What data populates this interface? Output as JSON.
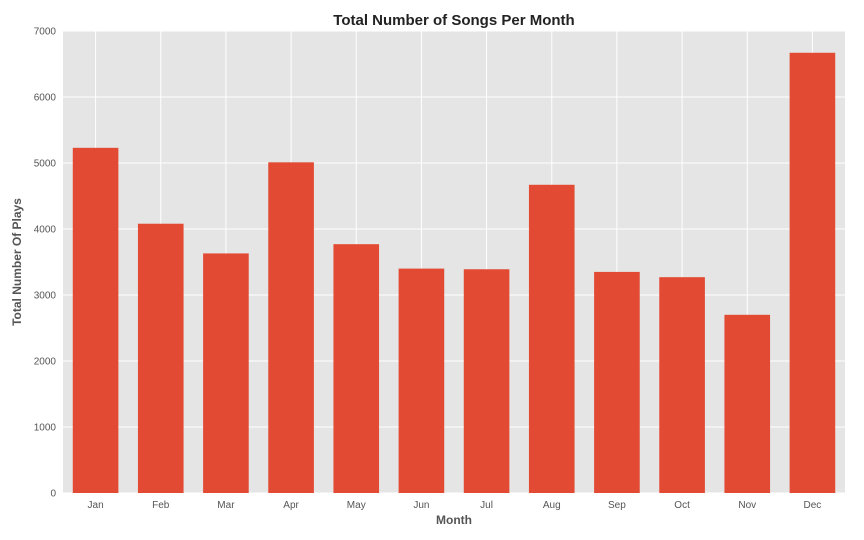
{
  "chart_data": {
    "type": "bar",
    "title": "Total Number of Songs Per Month",
    "xlabel": "Month",
    "ylabel": "Total Number Of Plays",
    "categories": [
      "Jan",
      "Feb",
      "Mar",
      "Apr",
      "May",
      "Jun",
      "Jul",
      "Aug",
      "Sep",
      "Oct",
      "Nov",
      "Dec"
    ],
    "values": [
      5230,
      4080,
      3630,
      5010,
      3770,
      3400,
      3390,
      4670,
      3350,
      3270,
      2700,
      6670
    ],
    "ylim": [
      0,
      7000
    ],
    "yticks": [
      0,
      1000,
      2000,
      3000,
      4000,
      5000,
      6000,
      7000
    ],
    "grid": true,
    "colors": {
      "bar": "#E24A33",
      "plot_background": "#E5E5E5",
      "grid": "#FFFFFF"
    }
  }
}
